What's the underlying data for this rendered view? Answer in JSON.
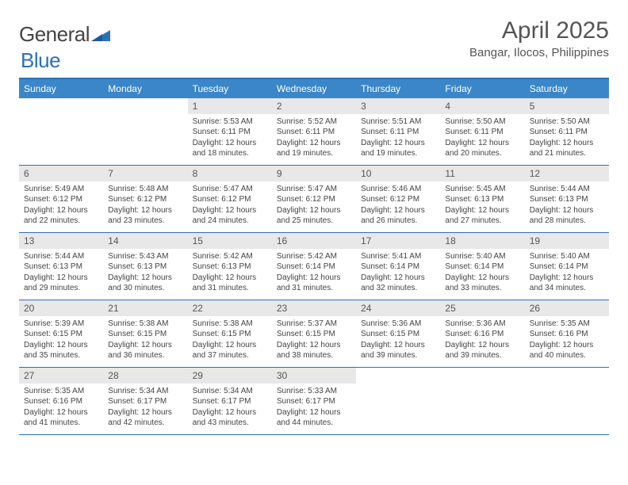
{
  "logo": {
    "part1": "General",
    "part2": "Blue"
  },
  "title": "April 2025",
  "location": "Bangar, Ilocos, Philippines",
  "colors": {
    "header_bar": "#3a86c8",
    "header_border": "#2a71b8",
    "daynum_bg": "#e8e8e8",
    "text": "#444444",
    "title_text": "#555555",
    "logo_gray": "#6b6b6b",
    "logo_blue": "#2a71b8",
    "background": "#ffffff"
  },
  "typography": {
    "month_title_fontsize": 30,
    "location_fontsize": 15,
    "dow_fontsize": 12,
    "daynum_fontsize": 12,
    "body_fontsize": 10,
    "logo_fontsize": 26
  },
  "days_of_week": [
    "Sunday",
    "Monday",
    "Tuesday",
    "Wednesday",
    "Thursday",
    "Friday",
    "Saturday"
  ],
  "weeks": [
    [
      null,
      null,
      {
        "n": "1",
        "sr": "5:53 AM",
        "ss": "6:11 PM",
        "dl": "12 hours and 18 minutes."
      },
      {
        "n": "2",
        "sr": "5:52 AM",
        "ss": "6:11 PM",
        "dl": "12 hours and 19 minutes."
      },
      {
        "n": "3",
        "sr": "5:51 AM",
        "ss": "6:11 PM",
        "dl": "12 hours and 19 minutes."
      },
      {
        "n": "4",
        "sr": "5:50 AM",
        "ss": "6:11 PM",
        "dl": "12 hours and 20 minutes."
      },
      {
        "n": "5",
        "sr": "5:50 AM",
        "ss": "6:11 PM",
        "dl": "12 hours and 21 minutes."
      }
    ],
    [
      {
        "n": "6",
        "sr": "5:49 AM",
        "ss": "6:12 PM",
        "dl": "12 hours and 22 minutes."
      },
      {
        "n": "7",
        "sr": "5:48 AM",
        "ss": "6:12 PM",
        "dl": "12 hours and 23 minutes."
      },
      {
        "n": "8",
        "sr": "5:47 AM",
        "ss": "6:12 PM",
        "dl": "12 hours and 24 minutes."
      },
      {
        "n": "9",
        "sr": "5:47 AM",
        "ss": "6:12 PM",
        "dl": "12 hours and 25 minutes."
      },
      {
        "n": "10",
        "sr": "5:46 AM",
        "ss": "6:12 PM",
        "dl": "12 hours and 26 minutes."
      },
      {
        "n": "11",
        "sr": "5:45 AM",
        "ss": "6:13 PM",
        "dl": "12 hours and 27 minutes."
      },
      {
        "n": "12",
        "sr": "5:44 AM",
        "ss": "6:13 PM",
        "dl": "12 hours and 28 minutes."
      }
    ],
    [
      {
        "n": "13",
        "sr": "5:44 AM",
        "ss": "6:13 PM",
        "dl": "12 hours and 29 minutes."
      },
      {
        "n": "14",
        "sr": "5:43 AM",
        "ss": "6:13 PM",
        "dl": "12 hours and 30 minutes."
      },
      {
        "n": "15",
        "sr": "5:42 AM",
        "ss": "6:13 PM",
        "dl": "12 hours and 31 minutes."
      },
      {
        "n": "16",
        "sr": "5:42 AM",
        "ss": "6:14 PM",
        "dl": "12 hours and 31 minutes."
      },
      {
        "n": "17",
        "sr": "5:41 AM",
        "ss": "6:14 PM",
        "dl": "12 hours and 32 minutes."
      },
      {
        "n": "18",
        "sr": "5:40 AM",
        "ss": "6:14 PM",
        "dl": "12 hours and 33 minutes."
      },
      {
        "n": "19",
        "sr": "5:40 AM",
        "ss": "6:14 PM",
        "dl": "12 hours and 34 minutes."
      }
    ],
    [
      {
        "n": "20",
        "sr": "5:39 AM",
        "ss": "6:15 PM",
        "dl": "12 hours and 35 minutes."
      },
      {
        "n": "21",
        "sr": "5:38 AM",
        "ss": "6:15 PM",
        "dl": "12 hours and 36 minutes."
      },
      {
        "n": "22",
        "sr": "5:38 AM",
        "ss": "6:15 PM",
        "dl": "12 hours and 37 minutes."
      },
      {
        "n": "23",
        "sr": "5:37 AM",
        "ss": "6:15 PM",
        "dl": "12 hours and 38 minutes."
      },
      {
        "n": "24",
        "sr": "5:36 AM",
        "ss": "6:15 PM",
        "dl": "12 hours and 39 minutes."
      },
      {
        "n": "25",
        "sr": "5:36 AM",
        "ss": "6:16 PM",
        "dl": "12 hours and 39 minutes."
      },
      {
        "n": "26",
        "sr": "5:35 AM",
        "ss": "6:16 PM",
        "dl": "12 hours and 40 minutes."
      }
    ],
    [
      {
        "n": "27",
        "sr": "5:35 AM",
        "ss": "6:16 PM",
        "dl": "12 hours and 41 minutes."
      },
      {
        "n": "28",
        "sr": "5:34 AM",
        "ss": "6:17 PM",
        "dl": "12 hours and 42 minutes."
      },
      {
        "n": "29",
        "sr": "5:34 AM",
        "ss": "6:17 PM",
        "dl": "12 hours and 43 minutes."
      },
      {
        "n": "30",
        "sr": "5:33 AM",
        "ss": "6:17 PM",
        "dl": "12 hours and 44 minutes."
      },
      null,
      null,
      null
    ]
  ],
  "labels": {
    "sunrise": "Sunrise:",
    "sunset": "Sunset:",
    "daylight": "Daylight:"
  }
}
